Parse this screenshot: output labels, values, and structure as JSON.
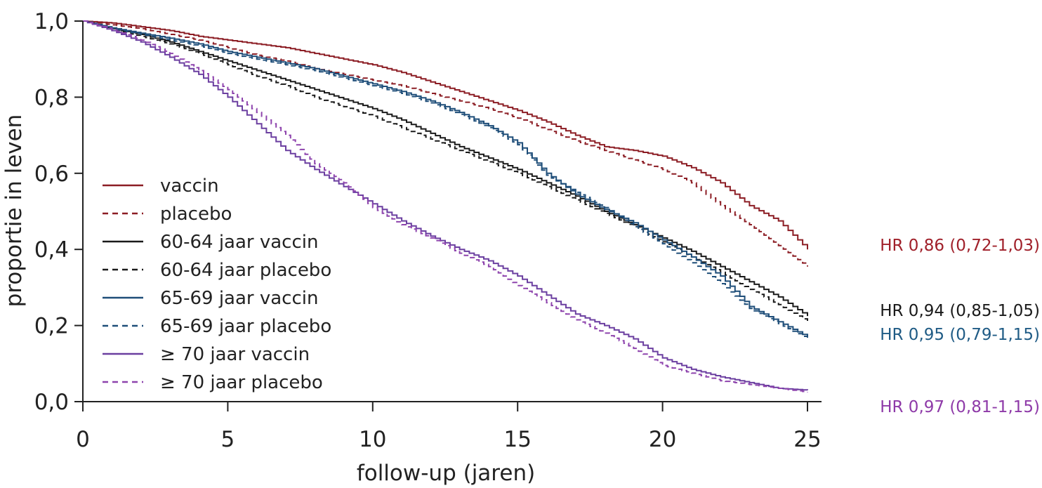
{
  "chart_data": {
    "type": "line",
    "title": "",
    "xlabel": "follow-up (jaren)",
    "ylabel": "proportie in leven",
    "xlim": [
      0,
      25
    ],
    "ylim": [
      0,
      1
    ],
    "xticks": [
      0,
      5,
      10,
      15,
      20,
      25
    ],
    "xtick_labels": [
      "0",
      "5",
      "10",
      "15",
      "20",
      "25"
    ],
    "yticks": [
      0,
      0.2,
      0.4,
      0.6,
      0.8,
      1.0
    ],
    "ytick_labels": [
      "0,0",
      "0,2",
      "0,4",
      "0,6",
      "0,8",
      "1,0"
    ],
    "grid": false,
    "legend_position": "center-left",
    "series": [
      {
        "name": "vaccin",
        "color": "#8c1d24",
        "dash": false,
        "x": [
          0,
          1,
          2,
          3,
          4,
          5,
          6,
          7,
          8,
          9,
          10,
          11,
          12,
          13,
          14,
          15,
          16,
          17,
          18,
          19,
          20,
          21,
          22,
          23,
          24,
          25
        ],
        "y": [
          1.0,
          0.995,
          0.985,
          0.975,
          0.96,
          0.95,
          0.94,
          0.93,
          0.915,
          0.9,
          0.885,
          0.865,
          0.84,
          0.815,
          0.79,
          0.765,
          0.735,
          0.7,
          0.67,
          0.66,
          0.645,
          0.615,
          0.575,
          0.515,
          0.475,
          0.4
        ]
      },
      {
        "name": "placebo",
        "color": "#8c1d24",
        "dash": true,
        "x": [
          0,
          1,
          2,
          3,
          4,
          5,
          6,
          7,
          8,
          9,
          10,
          11,
          12,
          13,
          14,
          15,
          16,
          17,
          18,
          19,
          20,
          21,
          22,
          23,
          24,
          25
        ],
        "y": [
          1.0,
          0.99,
          0.98,
          0.965,
          0.95,
          0.93,
          0.91,
          0.895,
          0.875,
          0.86,
          0.845,
          0.83,
          0.81,
          0.79,
          0.77,
          0.745,
          0.715,
          0.685,
          0.66,
          0.635,
          0.61,
          0.575,
          0.515,
          0.465,
          0.41,
          0.355
        ]
      },
      {
        "name": "60-64 jaar vaccin",
        "color": "#1a1a1a",
        "dash": false,
        "x": [
          0,
          1,
          2,
          3,
          4,
          5,
          6,
          7,
          8,
          9,
          10,
          11,
          12,
          13,
          14,
          15,
          16,
          17,
          18,
          19,
          20,
          21,
          22,
          23,
          24,
          25
        ],
        "y": [
          1.0,
          0.98,
          0.965,
          0.945,
          0.92,
          0.895,
          0.87,
          0.845,
          0.82,
          0.795,
          0.77,
          0.74,
          0.705,
          0.67,
          0.64,
          0.61,
          0.575,
          0.54,
          0.5,
          0.465,
          0.43,
          0.395,
          0.355,
          0.315,
          0.275,
          0.225
        ]
      },
      {
        "name": "60-64 jaar placebo",
        "color": "#1a1a1a",
        "dash": true,
        "x": [
          0,
          1,
          2,
          3,
          4,
          5,
          6,
          7,
          8,
          9,
          10,
          11,
          12,
          13,
          14,
          15,
          16,
          17,
          18,
          19,
          20,
          21,
          22,
          23,
          24,
          25
        ],
        "y": [
          1.0,
          0.978,
          0.96,
          0.94,
          0.915,
          0.885,
          0.855,
          0.83,
          0.8,
          0.775,
          0.75,
          0.72,
          0.69,
          0.66,
          0.63,
          0.6,
          0.565,
          0.53,
          0.495,
          0.46,
          0.42,
          0.38,
          0.34,
          0.295,
          0.255,
          0.21
        ]
      },
      {
        "name": "65-69 jaar vaccin",
        "color": "#1f4e79",
        "dash": false,
        "x": [
          0,
          1,
          2,
          3,
          4,
          5,
          6,
          7,
          8,
          9,
          10,
          11,
          12,
          13,
          14,
          15,
          16,
          17,
          18,
          19,
          20,
          21,
          22,
          23,
          24,
          25
        ],
        "y": [
          1.0,
          0.982,
          0.968,
          0.955,
          0.94,
          0.92,
          0.905,
          0.89,
          0.875,
          0.855,
          0.835,
          0.815,
          0.79,
          0.76,
          0.725,
          0.68,
          0.6,
          0.545,
          0.505,
          0.47,
          0.425,
          0.38,
          0.33,
          0.25,
          0.21,
          0.17
        ]
      },
      {
        "name": "65-69 jaar placebo",
        "color": "#1f4e79",
        "dash": true,
        "x": [
          0,
          1,
          2,
          3,
          4,
          5,
          6,
          7,
          8,
          9,
          10,
          11,
          12,
          13,
          14,
          15,
          16,
          17,
          18,
          19,
          20,
          21,
          22,
          23,
          24,
          25
        ],
        "y": [
          1.0,
          0.98,
          0.965,
          0.95,
          0.935,
          0.915,
          0.9,
          0.885,
          0.87,
          0.85,
          0.83,
          0.81,
          0.785,
          0.755,
          0.72,
          0.675,
          0.595,
          0.55,
          0.51,
          0.46,
          0.415,
          0.365,
          0.31,
          0.245,
          0.205,
          0.165
        ]
      },
      {
        "name": "≥ 70 jaar vaccin",
        "color": "#6b3fa0",
        "dash": false,
        "x": [
          0,
          1,
          2,
          3,
          4,
          5,
          6,
          7,
          8,
          9,
          10,
          11,
          12,
          13,
          14,
          15,
          16,
          17,
          18,
          19,
          20,
          21,
          22,
          23,
          24,
          25
        ],
        "y": [
          1.0,
          0.975,
          0.945,
          0.905,
          0.86,
          0.8,
          0.73,
          0.66,
          0.61,
          0.565,
          0.52,
          0.475,
          0.435,
          0.4,
          0.37,
          0.33,
          0.28,
          0.23,
          0.2,
          0.165,
          0.115,
          0.085,
          0.065,
          0.05,
          0.035,
          0.03
        ]
      },
      {
        "name": "≥ 70 jaar placebo",
        "color": "#8e44ad",
        "dash": true,
        "x": [
          0,
          1,
          2,
          3,
          4,
          5,
          6,
          7,
          8,
          9,
          10,
          11,
          12,
          13,
          14,
          15,
          16,
          17,
          18,
          19,
          20,
          21,
          22,
          23,
          24,
          25
        ],
        "y": [
          1.0,
          0.978,
          0.95,
          0.915,
          0.87,
          0.82,
          0.76,
          0.7,
          0.625,
          0.575,
          0.51,
          0.465,
          0.43,
          0.39,
          0.355,
          0.305,
          0.26,
          0.215,
          0.18,
          0.14,
          0.095,
          0.075,
          0.055,
          0.045,
          0.035,
          0.025
        ]
      }
    ],
    "annotations": [
      {
        "text": "HR 0,86 (0,72-1,03)",
        "y": 0.4,
        "color": "#a0202a"
      },
      {
        "text": "HR 0,94 (0,85-1,05)",
        "y": 0.235,
        "color": "#1a1a1a"
      },
      {
        "text": "HR 0,95 (0,79-1,15)",
        "y": 0.175,
        "color": "#1f5b85"
      },
      {
        "text": "HR 0,97 (0,81-1,15)",
        "y": 0.03,
        "color": "#8e3aa8"
      }
    ]
  }
}
